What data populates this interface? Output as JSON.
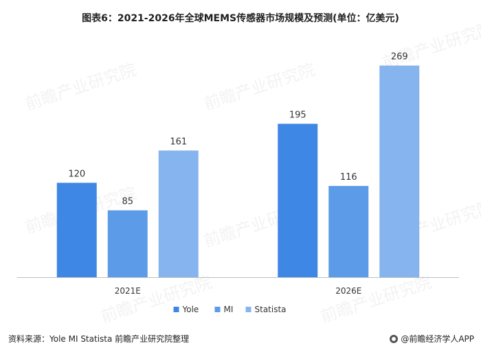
{
  "title": "图表6：2021-2026年全球MEMS传感器市场规模及预测(单位：亿美元)",
  "source": "资料来源：Yole MI Statista 前瞻产业研究院整理",
  "brand": "@前瞻经济学人APP",
  "watermark": "前瞻产业研究院",
  "chart_data": {
    "type": "bar",
    "title": "图表6：2021-2026年全球MEMS传感器市场规模及预测(单位：亿美元)",
    "categories": [
      "2021E",
      "2026E"
    ],
    "series": [
      {
        "name": "Yole",
        "values": [
          120,
          195
        ],
        "color": "#3F87E5"
      },
      {
        "name": "MI",
        "values": [
          85,
          116
        ],
        "color": "#5B9BE8"
      },
      {
        "name": "Statista",
        "values": [
          161,
          269
        ],
        "color": "#85B4EE"
      }
    ],
    "xlabel": "",
    "ylabel": "",
    "ylim": [
      0,
      300
    ],
    "grid": false,
    "legend": "bottom-center",
    "data_labels": true
  }
}
